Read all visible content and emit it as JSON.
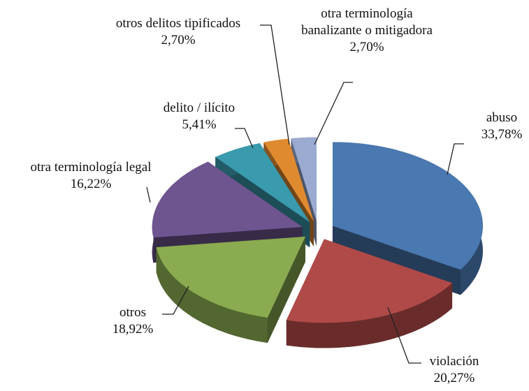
{
  "chart_data": {
    "type": "pie",
    "categories": [
      "abuso",
      "violación",
      "otros",
      "otra terminología legal",
      "delito / ilícito",
      "otros delitos tipificados",
      "otra terminología banalizante o mitigadora"
    ],
    "values": [
      33.78,
      20.27,
      18.92,
      16.22,
      5.41,
      2.7,
      2.7
    ],
    "value_labels": [
      "33,78%",
      "20,27%",
      "18,92%",
      "16,22%",
      "5,41%",
      "2,70%",
      "2,70%"
    ],
    "colors": [
      "#4a78b0",
      "#b04a48",
      "#8aab50",
      "#6e5590",
      "#3a9aae",
      "#e08a30",
      "#9aaad0"
    ]
  }
}
